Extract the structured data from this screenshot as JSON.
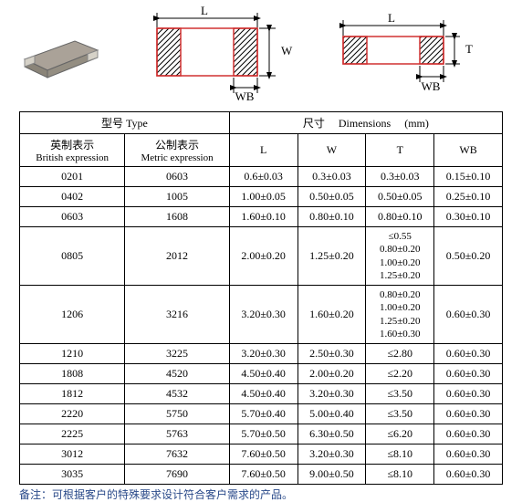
{
  "diagram_labels": {
    "L": "L",
    "W": "W",
    "T": "T",
    "WB": "WB"
  },
  "headers": {
    "type_group": "型号 Type",
    "dim_group": "尺寸     Dimensions     (mm)",
    "british_cn": "英制表示",
    "british_en": "British expression",
    "metric_cn": "公制表示",
    "metric_en": "Metric expression",
    "L": "L",
    "W": "W",
    "T": "T",
    "WB": "WB"
  },
  "rows": [
    {
      "be": "0201",
      "me": "0603",
      "L": "0.6±0.03",
      "W": "0.3±0.03",
      "T": "0.3±0.03",
      "WB": "0.15±0.10"
    },
    {
      "be": "0402",
      "me": "1005",
      "L": "1.00±0.05",
      "W": "0.50±0.05",
      "T": "0.50±0.05",
      "WB": "0.25±0.10"
    },
    {
      "be": "0603",
      "me": "1608",
      "L": "1.60±0.10",
      "W": "0.80±0.10",
      "T": "0.80±0.10",
      "WB": "0.30±0.10"
    },
    {
      "be": "0805",
      "me": "2012",
      "L": "2.00±0.20",
      "W": "1.25±0.20",
      "T": [
        "≤0.55",
        "0.80±0.20",
        "1.00±0.20",
        "1.25±0.20"
      ],
      "WB": "0.50±0.20"
    },
    {
      "be": "1206",
      "me": "3216",
      "L": "3.20±0.30",
      "W": "1.60±0.20",
      "T": [
        "0.80±0.20",
        "1.00±0.20",
        "1.25±0.20",
        "1.60±0.30"
      ],
      "WB": "0.60±0.30"
    },
    {
      "be": "1210",
      "me": "3225",
      "L": "3.20±0.30",
      "W": "2.50±0.30",
      "T": "≤2.80",
      "WB": "0.60±0.30"
    },
    {
      "be": "1808",
      "me": "4520",
      "L": "4.50±0.40",
      "W": "2.00±0.20",
      "T": "≤2.20",
      "WB": "0.60±0.30"
    },
    {
      "be": "1812",
      "me": "4532",
      "L": "4.50±0.40",
      "W": "3.20±0.30",
      "T": "≤3.50",
      "WB": "0.60±0.30"
    },
    {
      "be": "2220",
      "me": "5750",
      "L": "5.70±0.40",
      "W": "5.00±0.40",
      "T": "≤3.50",
      "WB": "0.60±0.30"
    },
    {
      "be": "2225",
      "me": "5763",
      "L": "5.70±0.50",
      "W": "6.30±0.50",
      "T": "≤6.20",
      "WB": "0.60±0.30"
    },
    {
      "be": "3012",
      "me": "7632",
      "L": "7.60±0.50",
      "W": "3.20±0.30",
      "T": "≤8.10",
      "WB": "0.60±0.30"
    },
    {
      "be": "3035",
      "me": "7690",
      "L": "7.60±0.50",
      "W": "9.00±0.50",
      "T": "≤8.10",
      "WB": "0.60±0.30"
    }
  ],
  "note": "备注：可根据客户的特殊要求设计符合客户需求的产品。",
  "colors": {
    "chip_body": "#a8a090",
    "chip_end": "#c8c4ba",
    "hatch": "#000000",
    "outline_red": "#d03030",
    "arrow": "#000000"
  }
}
